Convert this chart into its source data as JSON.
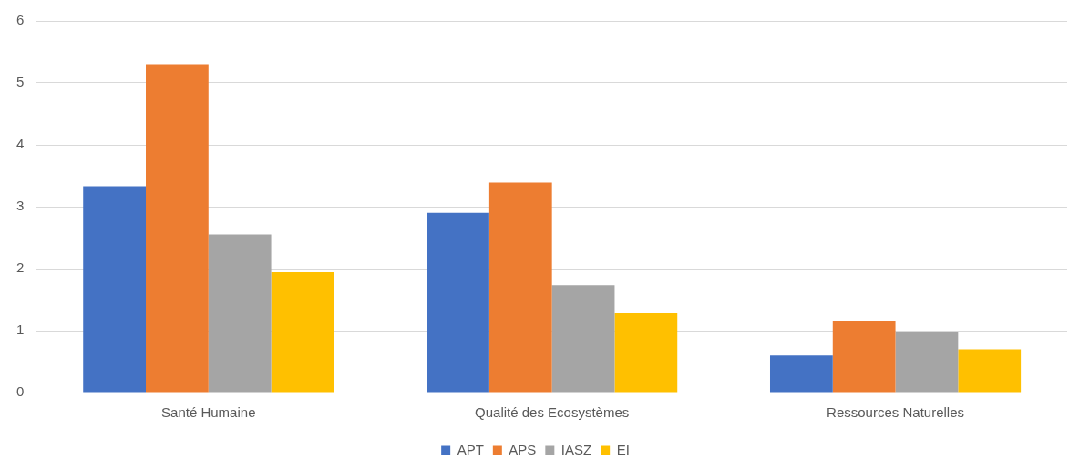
{
  "chart_data": {
    "type": "bar",
    "categories": [
      "Santé Humaine",
      "Qualité des Ecosystèmes",
      "Ressources Naturelles"
    ],
    "series": [
      {
        "name": "APT",
        "color": "#4472c4",
        "values": [
          3.33,
          2.9,
          0.6
        ]
      },
      {
        "name": "APS",
        "color": "#ed7d31",
        "values": [
          5.3,
          3.39,
          1.16
        ]
      },
      {
        "name": "IASZ",
        "color": "#a5a5a5",
        "values": [
          2.55,
          1.73,
          0.97
        ]
      },
      {
        "name": "EI",
        "color": "#ffc000",
        "values": [
          1.94,
          1.28,
          0.7
        ]
      }
    ],
    "ylim": [
      0,
      6
    ],
    "yticks": [
      0,
      1,
      2,
      3,
      4,
      5,
      6
    ],
    "grid": "y",
    "legend": "bottom"
  }
}
